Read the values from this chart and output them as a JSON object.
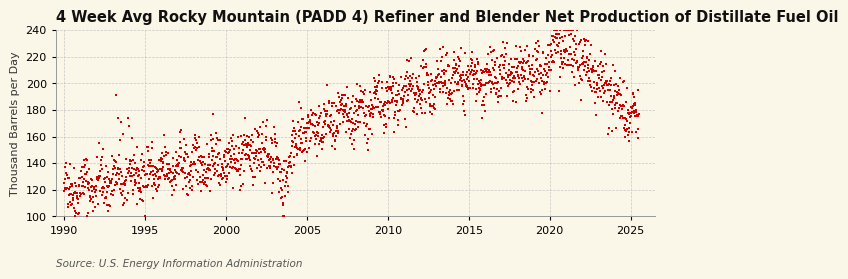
{
  "title": "4 Week Avg Rocky Mountain (PADD 4) Refiner and Blender Net Production of Distillate Fuel Oil",
  "ylabel": "Thousand Barrels per Day",
  "source": "Source: U.S. Energy Information Administration",
  "xlim": [
    1989.5,
    2026.5
  ],
  "ylim": [
    100,
    240
  ],
  "yticks": [
    100,
    120,
    140,
    160,
    180,
    200,
    220,
    240
  ],
  "xticks": [
    1990,
    1995,
    2000,
    2005,
    2010,
    2015,
    2020,
    2025
  ],
  "background_color": "#FAF6E8",
  "dot_color": "#CC0000",
  "grid_color": "#BBBBBB",
  "title_fontsize": 10.5,
  "ylabel_fontsize": 8,
  "source_fontsize": 7.5,
  "tick_fontsize": 8,
  "seed": 42,
  "start_year": 1990.0,
  "end_year": 2025.5,
  "n_points": 1850
}
